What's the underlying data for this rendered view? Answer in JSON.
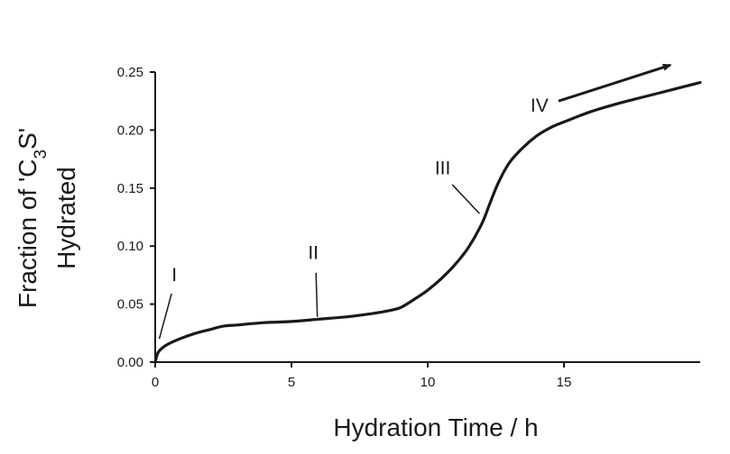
{
  "chart_data": {
    "type": "line",
    "title": "",
    "xlabel": "Hydration Time / h",
    "ylabel": {
      "prefix": "Fraction of 'C",
      "subscript": "3",
      "suffix": "S'",
      "line2": "Hydrated"
    },
    "xlim": [
      0,
      20
    ],
    "ylim": [
      0,
      0.25
    ],
    "x_ticks": [
      0,
      5,
      10,
      15
    ],
    "x_tick_labels": [
      "0",
      "5",
      "10",
      "15"
    ],
    "y_ticks": [
      0,
      0.05,
      0.1,
      0.15,
      0.2,
      0.25
    ],
    "y_tick_labels": [
      "0.00",
      "0.05",
      "0.10",
      "0.15",
      "0.20",
      "0.25"
    ],
    "grid": false,
    "series": [
      {
        "x": [
          0,
          0.1,
          0.3,
          0.6,
          1.0,
          1.5,
          2.0,
          2.5,
          3.0,
          4.0,
          5.0,
          6.0,
          7.0,
          8.0,
          8.5,
          9.0,
          9.5,
          10.0,
          10.5,
          11.0,
          11.5,
          12.0,
          12.3,
          12.6,
          13.0,
          13.5,
          14.0,
          14.5,
          15.0,
          16.0,
          17.0,
          18.0,
          19.0,
          20.0
        ],
        "y": [
          0.0,
          0.008,
          0.013,
          0.017,
          0.021,
          0.025,
          0.028,
          0.031,
          0.032,
          0.034,
          0.035,
          0.037,
          0.039,
          0.042,
          0.044,
          0.047,
          0.054,
          0.062,
          0.072,
          0.084,
          0.099,
          0.12,
          0.138,
          0.155,
          0.172,
          0.185,
          0.195,
          0.202,
          0.207,
          0.216,
          0.223,
          0.229,
          0.235,
          0.241
        ]
      }
    ],
    "annotations": [
      {
        "text": "I",
        "label_x": 0.7,
        "label_y": 0.07,
        "line_from": [
          0.6,
          0.059
        ],
        "line_to": [
          0.15,
          0.02
        ]
      },
      {
        "text": "II",
        "label_x": 5.8,
        "label_y": 0.089,
        "line_from": [
          5.9,
          0.077
        ],
        "line_to": [
          5.95,
          0.039
        ]
      },
      {
        "text": "III",
        "label_x": 10.55,
        "label_y": 0.162,
        "line_from": [
          10.9,
          0.153
        ],
        "line_to": [
          11.9,
          0.128
        ]
      },
      {
        "text": "IV",
        "label_x": 14.1,
        "label_y": 0.216,
        "arrow_from": [
          14.8,
          0.225
        ],
        "arrow_to": [
          18.9,
          0.256
        ]
      }
    ]
  }
}
